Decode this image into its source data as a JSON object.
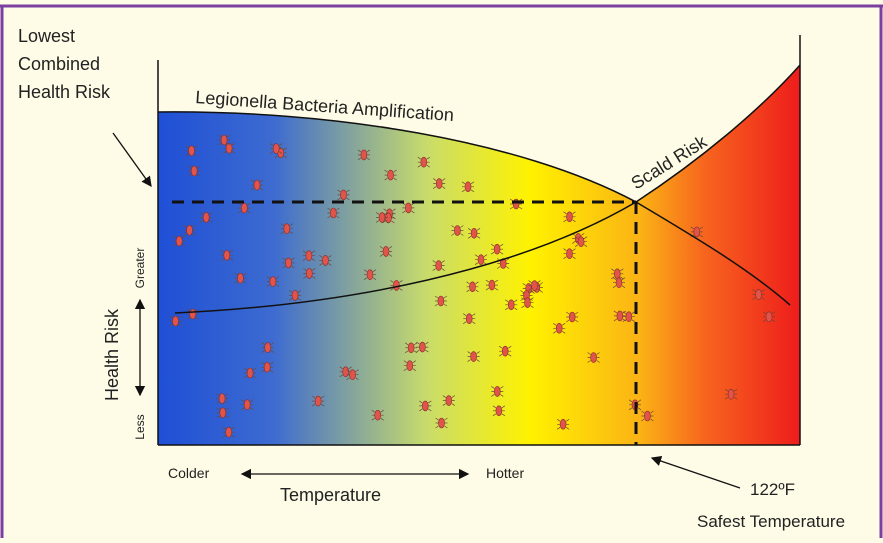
{
  "labels": {
    "lowest_risk": [
      "Lowest",
      "Combined",
      "Health Risk"
    ],
    "legionella": "Legionella Bacteria Amplification",
    "scald": "Scald Risk",
    "y_axis": "Health Risk",
    "greater": "Greater",
    "less": "Less",
    "colder": "Colder",
    "hotter": "Hotter",
    "x_axis": "Temperature",
    "temp": "122ºF",
    "safest": "Safest Temperature"
  }
}
